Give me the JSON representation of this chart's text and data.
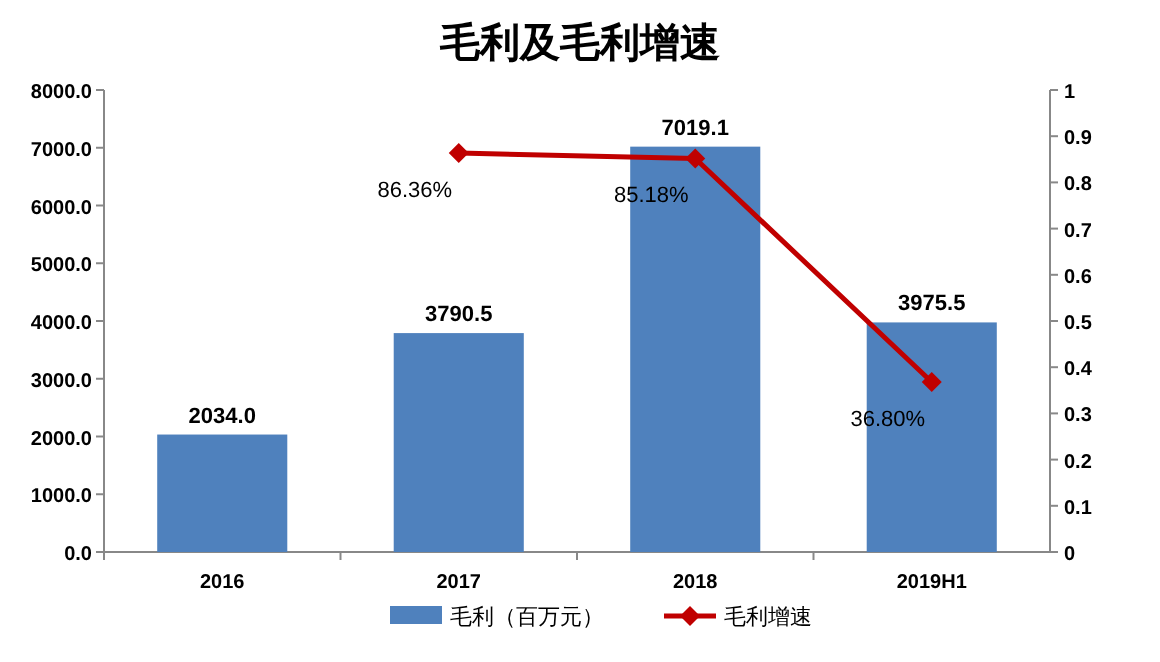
{
  "chart_data": {
    "type": "bar",
    "title": "毛利及毛利增速",
    "categories": [
      "2016",
      "2017",
      "2018",
      "2019H1"
    ],
    "series": [
      {
        "name": "毛利（百万元）",
        "color": "#4f81bd",
        "values": [
          2034.0,
          3790.5,
          7019.1,
          3975.5
        ],
        "value_labels": [
          "2034.0",
          "3790.5",
          "7019.1",
          "3975.5"
        ]
      },
      {
        "name": "毛利增速",
        "type": "line",
        "axis": "y2",
        "color": "#c00000",
        "marker": "diamond",
        "values": [
          null,
          0.8636,
          0.8518,
          0.368
        ],
        "value_labels": [
          null,
          "86.36%",
          "85.18%",
          "36.80%"
        ]
      }
    ],
    "ylim": [
      0,
      8000
    ],
    "yticks": [
      {
        "value": 0,
        "label": "0.0"
      },
      {
        "value": 1000,
        "label": "1000.0"
      },
      {
        "value": 2000,
        "label": "2000.0"
      },
      {
        "value": 3000,
        "label": "3000.0"
      },
      {
        "value": 4000,
        "label": "4000.0"
      },
      {
        "value": 5000,
        "label": "5000.0"
      },
      {
        "value": 6000,
        "label": "6000.0"
      },
      {
        "value": 7000,
        "label": "7000.0"
      },
      {
        "value": 8000,
        "label": "8000.0"
      }
    ],
    "y2lim": [
      0,
      1
    ],
    "y2ticks": [
      0,
      0.1,
      0.2,
      0.3,
      0.4,
      0.5,
      0.6,
      0.7,
      0.8,
      0.9,
      1
    ],
    "legend": "bottom"
  }
}
